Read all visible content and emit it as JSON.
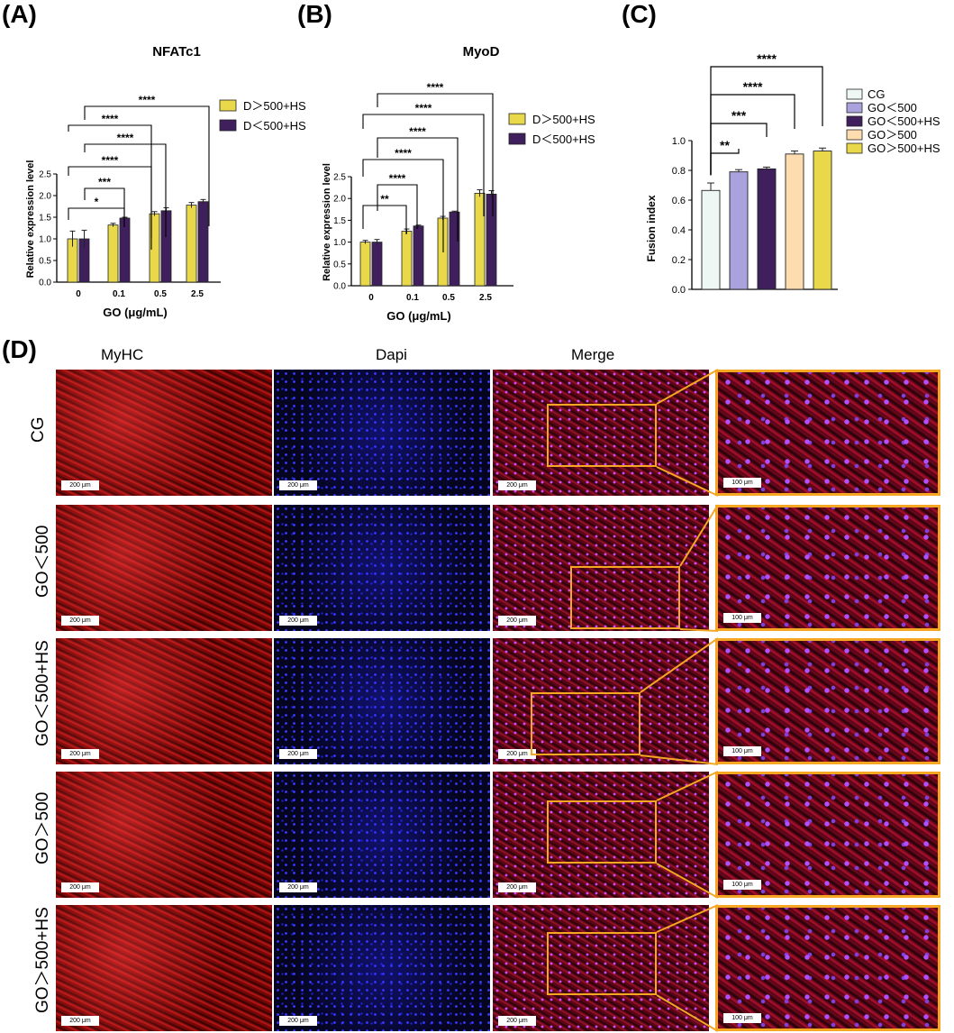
{
  "panels": {
    "a_letter": "(A)",
    "b_letter": "(B)",
    "c_letter": "(C)",
    "d_letter": "(D)"
  },
  "chart_data": [
    {
      "type": "bar",
      "id": "A",
      "title": "NFATc1",
      "xlabel": "GO (μg/mL)",
      "ylabel": "Relative expression level",
      "categories": [
        "0",
        "0.1",
        "0.5",
        "2.5"
      ],
      "ylim": [
        0,
        2.5
      ],
      "yticks": [
        "0.0",
        "0.5",
        "1.0",
        "1.5",
        "2.0",
        "2.5"
      ],
      "series": [
        {
          "name": "D＞500+HS",
          "color": "#e8d84a",
          "values": [
            1.0,
            1.32,
            1.58,
            1.78
          ],
          "errors": [
            0.18,
            0.04,
            0.05,
            0.06
          ]
        },
        {
          "name": "D＜500+HS",
          "color": "#3f1f5c",
          "values": [
            1.0,
            1.48,
            1.65,
            1.86
          ],
          "errors": [
            0.2,
            0.02,
            0.07,
            0.05
          ]
        }
      ],
      "significance": [
        {
          "label": "*",
          "from": 0,
          "to": 1
        },
        {
          "label": "***",
          "from": 0,
          "to": 1
        },
        {
          "label": "****",
          "from": 0,
          "to": 1
        },
        {
          "label": "****",
          "from": 0,
          "to": 2
        },
        {
          "label": "****",
          "from": 0,
          "to": 2
        },
        {
          "label": "****",
          "from": 0,
          "to": 3
        }
      ],
      "legend": "top-right"
    },
    {
      "type": "bar",
      "id": "B",
      "title": "MyoD",
      "xlabel": "GO (μg/mL)",
      "ylabel": "Relative expression level",
      "categories": [
        "0",
        "0.1",
        "0.5",
        "2.5"
      ],
      "ylim": [
        0,
        2.5
      ],
      "yticks": [
        "0.0",
        "0.5",
        "1.0",
        "1.5",
        "2.0",
        "2.5"
      ],
      "series": [
        {
          "name": "D＞500+HS",
          "color": "#e8d84a",
          "values": [
            1.0,
            1.25,
            1.55,
            2.12
          ],
          "errors": [
            0.04,
            0.05,
            0.04,
            0.08
          ]
        },
        {
          "name": "D＜500+HS",
          "color": "#3f1f5c",
          "values": [
            1.0,
            1.37,
            1.69,
            2.1
          ],
          "errors": [
            0.06,
            0.02,
            0.02,
            0.08
          ]
        }
      ],
      "significance": [
        {
          "label": "**",
          "from": 0,
          "to": 1
        },
        {
          "label": "****",
          "from": 0,
          "to": 1
        },
        {
          "label": "****",
          "from": 0,
          "to": 2
        },
        {
          "label": "****",
          "from": 0,
          "to": 2
        },
        {
          "label": "****",
          "from": 0,
          "to": 3
        },
        {
          "label": "****",
          "from": 0,
          "to": 3
        }
      ],
      "legend": "top-right"
    },
    {
      "type": "bar",
      "id": "C",
      "title": "",
      "xlabel": "",
      "ylabel": "Fusion index",
      "categories": [
        "CG",
        "GO＜500",
        "GO＜500+HS",
        "GO＞500",
        "GO＞500+HS"
      ],
      "ylim": [
        0,
        1.0
      ],
      "yticks": [
        "0.0",
        "0.2",
        "0.4",
        "0.6",
        "0.8",
        "1.0"
      ],
      "values": [
        0.665,
        0.79,
        0.81,
        0.91,
        0.93
      ],
      "errors": [
        0.05,
        0.015,
        0.012,
        0.02,
        0.02
      ],
      "colors": [
        "#eef7f3",
        "#a9a2dc",
        "#3f1f5c",
        "#fddcb0",
        "#e8d84a"
      ],
      "significance": [
        {
          "label": "**",
          "from": 0,
          "to": 1
        },
        {
          "label": "***",
          "from": 0,
          "to": 2
        },
        {
          "label": "****",
          "from": 0,
          "to": 3
        },
        {
          "label": "****",
          "from": 0,
          "to": 4
        }
      ],
      "legend": "right"
    }
  ],
  "micrographs": {
    "columns": [
      "MyHC",
      "Dapi",
      "Merge"
    ],
    "rows": [
      "CG",
      "GO＜500",
      "GO＜500+HS",
      "GO＞500",
      "GO＞500+HS"
    ],
    "scale_main": "200 μm",
    "scale_zoom": "100 μm"
  }
}
